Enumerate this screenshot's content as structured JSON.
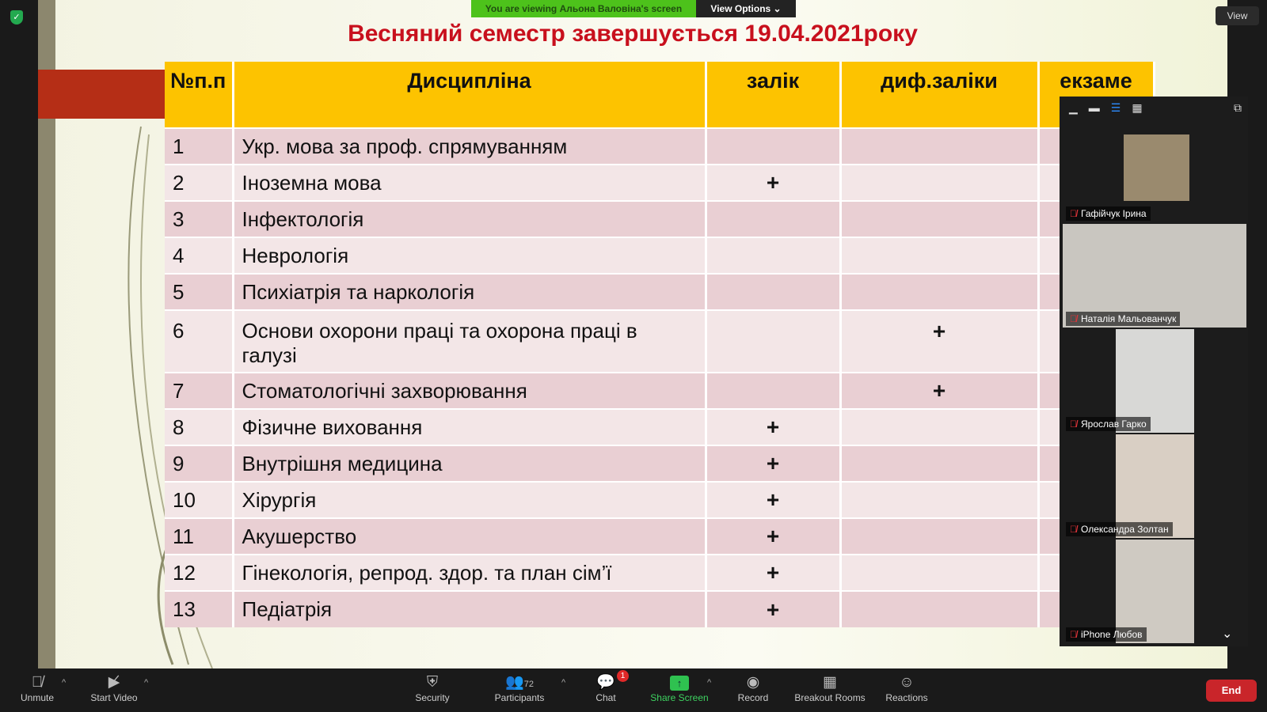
{
  "banner": {
    "viewing": "You are viewing Альона Валовіна's screen",
    "view_options": "View Options ⌄",
    "view": "View"
  },
  "slide": {
    "title": "Весняний семестр завершується 19.04.2021року",
    "headers": [
      "№п.п",
      "Дисципліна",
      "залік",
      "диф.заліки",
      "екзаме"
    ],
    "rows": [
      [
        "1",
        "Укр. мова за проф.  спрямуванням",
        "",
        ""
      ],
      [
        "2",
        "Іноземна мова",
        "+",
        ""
      ],
      [
        "3",
        "Інфектологія",
        "",
        ""
      ],
      [
        "4",
        "Неврологія",
        "",
        ""
      ],
      [
        "5",
        "Психіатрія та наркологія",
        "",
        ""
      ],
      [
        "6",
        "Основи охорони праці та охорона праці в галузі",
        "",
        "+"
      ],
      [
        "7",
        "Стоматологічні захворювання",
        "",
        "+"
      ],
      [
        "8",
        "Фізичне виховання",
        "+",
        ""
      ],
      [
        "9",
        "Внутрішня медицина",
        "+",
        ""
      ],
      [
        "10",
        "Хірургія",
        "+",
        ""
      ],
      [
        "11",
        "Акушерство",
        "+",
        ""
      ],
      [
        "12",
        "Гінекологія, репрод. здор. та план сім’ї",
        "+",
        ""
      ],
      [
        "13",
        "Педіатрія",
        "+",
        ""
      ]
    ]
  },
  "participants": [
    {
      "name": "Гафійчук Ірина",
      "color": "#9a8a6e"
    },
    {
      "name": "Наталія Мальованчук",
      "color": "#c9c6c0"
    },
    {
      "name": "Ярослав Гарко",
      "color": "#d8d8d6"
    },
    {
      "name": "Олександра Золтан",
      "color": "#d9cfc4"
    },
    {
      "name": "iPhone Любов",
      "color": "#cfcac2"
    }
  ],
  "toolbar": {
    "unmute": "Unmute",
    "start_video": "Start Video",
    "security": "Security",
    "participants": "Participants",
    "participant_count": "72",
    "chat": "Chat",
    "chat_badge": "1",
    "share": "Share Screen",
    "record": "Record",
    "breakout": "Breakout Rooms",
    "reactions": "Reactions",
    "end": "End"
  }
}
